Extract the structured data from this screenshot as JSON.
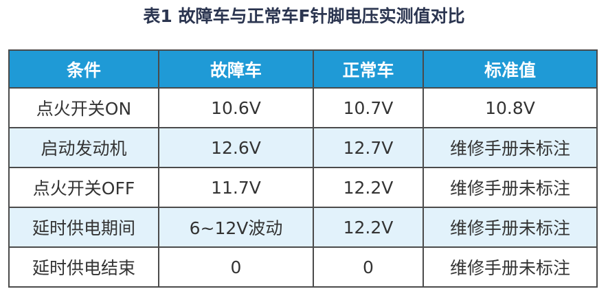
{
  "title": "表1 故障车与正常车F针脚电压实测值对比",
  "table": {
    "header": [
      "条件",
      "故障车",
      "正常车",
      "标准值"
    ],
    "rows": [
      [
        "点火开关ON",
        "10.6V",
        "10.7V",
        "10.8V"
      ],
      [
        "启动发动机",
        "12.6V",
        "12.7V",
        "维修手册未标注"
      ],
      [
        "点火开关OFF",
        "11.7V",
        "12.2V",
        "维修手册未标注"
      ],
      [
        "延时供电期间",
        "6~12V波动",
        "12.2V",
        "维修手册未标注"
      ],
      [
        "延时供电结束",
        "0",
        "0",
        "维修手册未标注"
      ]
    ]
  }
}
